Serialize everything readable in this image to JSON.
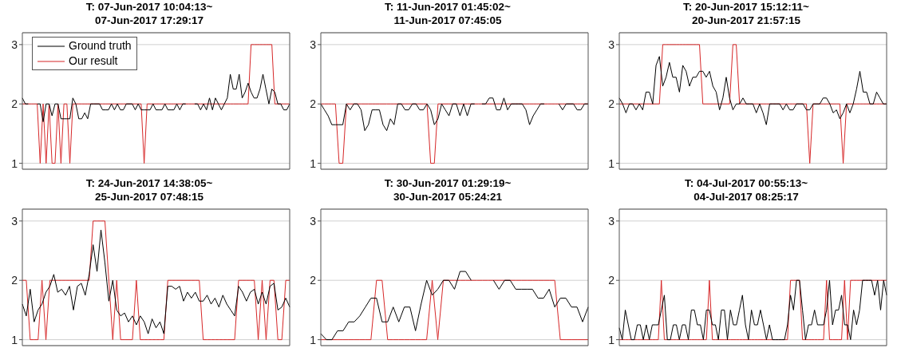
{
  "chart_data": [
    {
      "type": "line",
      "title": "T: 07-Jun-2017 10:04:13~\n07-Jun-2017 17:29:17",
      "legend": "top left",
      "grid": "y",
      "tick_labels": "y",
      "ylim": [
        0.9,
        3.2
      ],
      "yticks": [
        1,
        2,
        3
      ],
      "categories": [
        null,
        null,
        null,
        null,
        null,
        null,
        null,
        null,
        null,
        null,
        null,
        null,
        null,
        null,
        null,
        null,
        null,
        null,
        null,
        null,
        null,
        null,
        null,
        null,
        null,
        null,
        null,
        null,
        null,
        null,
        null,
        null,
        null,
        null,
        null,
        null,
        null,
        null,
        null,
        null,
        null,
        null,
        null,
        null,
        null,
        null,
        null,
        null,
        null,
        null,
        null,
        null,
        null,
        null,
        null,
        null,
        null,
        null,
        null,
        null,
        null,
        null,
        null,
        null,
        null,
        null,
        null,
        null,
        null,
        null,
        null,
        null,
        null,
        null,
        null,
        null,
        null,
        null,
        null,
        null,
        null,
        null,
        null,
        null,
        null,
        null,
        null,
        null,
        null,
        null,
        null
      ],
      "series": [
        {
          "name": "Ground truth",
          "color": "#000000",
          "values": [
            2.1,
            2.0,
            2.0,
            null,
            null,
            2.0,
            2.0,
            1.7,
            2.0,
            2.0,
            1.8,
            2.0,
            2.0,
            1.75,
            1.75,
            1.75,
            1.75,
            2.1,
            2.0,
            1.75,
            1.75,
            1.85,
            1.75,
            2.0,
            2.0,
            2.0,
            2.0,
            1.9,
            1.9,
            1.9,
            2.0,
            1.9,
            2.0,
            1.9,
            1.9,
            2.0,
            2.0,
            2.0,
            1.9,
            2.0,
            1.9,
            1.9,
            1.9,
            1.9,
            2.0,
            1.9,
            1.9,
            1.9,
            2.0,
            1.9,
            1.9,
            1.9,
            2.0,
            1.9,
            2.0,
            2.0,
            null,
            null,
            2.0,
            2.0,
            1.9,
            2.0,
            1.9,
            2.1,
            1.9,
            2.1,
            2.0,
            1.9,
            2.0,
            2.1,
            2.5,
            2.25,
            2.25,
            2.5,
            2.1,
            2.2,
            2.35,
            2.2,
            2.1,
            2.1,
            2.25,
            2.5,
            2.25,
            2.0,
            2.25,
            2.2,
            2.0,
            2.0,
            1.9,
            1.9,
            2.0
          ]
        },
        {
          "name": "Our result",
          "color": "#d62728",
          "values": [
            2,
            2,
            2,
            2,
            2,
            2,
            1,
            2,
            1,
            2,
            1,
            1,
            2,
            1,
            2,
            2,
            1,
            2,
            2,
            2,
            2,
            2,
            2,
            2,
            2,
            2,
            2,
            2,
            2,
            2,
            2,
            2,
            2,
            2,
            2,
            2,
            2,
            2,
            2,
            2,
            2,
            1,
            2,
            2,
            2,
            2,
            2,
            2,
            2,
            2,
            2,
            2,
            2,
            2,
            2,
            2,
            2,
            2,
            2,
            2,
            2,
            2,
            2,
            2,
            2,
            2,
            2,
            2,
            2,
            2,
            2,
            2,
            2,
            2,
            2,
            2,
            2,
            3,
            3,
            3,
            3,
            3,
            3,
            3,
            3,
            2,
            2,
            2,
            2,
            2,
            2
          ]
        }
      ]
    },
    {
      "type": "line",
      "title": "T: 11-Jun-2017 01:45:02~\n11-Jun-2017 07:45:05",
      "grid": "y",
      "tick_labels": "y",
      "ylim": [
        0.9,
        3.2
      ],
      "yticks": [
        1,
        2,
        3
      ],
      "categories": [
        null,
        null,
        null,
        null,
        null,
        null,
        null,
        null,
        null,
        null,
        null,
        null,
        null,
        null,
        null,
        null,
        null,
        null,
        null,
        null,
        null,
        null,
        null,
        null,
        null,
        null,
        null,
        null,
        null,
        null,
        null,
        null,
        null,
        null,
        null,
        null,
        null,
        null,
        null,
        null,
        null,
        null,
        null,
        null,
        null,
        null,
        null,
        null,
        null,
        null,
        null,
        null,
        null,
        null,
        null,
        null,
        null,
        null,
        null,
        null,
        null,
        null,
        null,
        null,
        null,
        null,
        null,
        null,
        null,
        null,
        null,
        null,
        null,
        null
      ],
      "series": [
        {
          "color": "#000000",
          "values": [
            2.0,
            1.9,
            1.8,
            1.65,
            1.65,
            1.65,
            1.65,
            2.0,
            1.9,
            2.0,
            2.0,
            1.9,
            1.55,
            1.65,
            1.9,
            1.9,
            1.9,
            1.65,
            1.55,
            1.75,
            1.65,
            2.0,
            2.0,
            1.9,
            1.9,
            2.0,
            2.0,
            1.9,
            1.9,
            2.0,
            1.9,
            1.65,
            1.75,
            2.0,
            1.9,
            1.8,
            2.0,
            2.0,
            1.8,
            2.0,
            1.8,
            2.0,
            2.0,
            null,
            2.0,
            2.0,
            2.1,
            2.1,
            1.9,
            1.9,
            2.1,
            1.9,
            2.0,
            2.0,
            2.0,
            2.0,
            1.9,
            1.65,
            1.8,
            1.9,
            2.0,
            2.0,
            null,
            null,
            null,
            2.0,
            1.9,
            2.0,
            2.0,
            2.0,
            1.9,
            1.9,
            2.0,
            2.0
          ]
        },
        {
          "color": "#d62728",
          "values": [
            2,
            2,
            2,
            2,
            2,
            1,
            1,
            2,
            2,
            2,
            2,
            2,
            2,
            2,
            2,
            2,
            2,
            2,
            2,
            2,
            2,
            2,
            2,
            2,
            2,
            2,
            2,
            2,
            2,
            2,
            1,
            1,
            2,
            2,
            2,
            2,
            2,
            2,
            2,
            2,
            2,
            2,
            2,
            2,
            2,
            2,
            2,
            2,
            2,
            2,
            2,
            2,
            2,
            2,
            2,
            2,
            2,
            2,
            2,
            2,
            2,
            2,
            2,
            2,
            2,
            2,
            2,
            2,
            2,
            2,
            2,
            2,
            2,
            2
          ]
        }
      ]
    },
    {
      "type": "line",
      "title": "T: 20-Jun-2017 15:12:11~\n20-Jun-2017 21:57:15",
      "grid": "y",
      "tick_labels": "y",
      "ylim": [
        0.9,
        3.2
      ],
      "yticks": [
        1,
        2,
        3
      ],
      "categories": [
        null,
        null,
        null,
        null,
        null,
        null,
        null,
        null,
        null,
        null,
        null,
        null,
        null,
        null,
        null,
        null,
        null,
        null,
        null,
        null,
        null,
        null,
        null,
        null,
        null,
        null,
        null,
        null,
        null,
        null,
        null,
        null,
        null,
        null,
        null,
        null,
        null,
        null,
        null,
        null,
        null,
        null,
        null,
        null,
        null,
        null,
        null,
        null,
        null,
        null,
        null,
        null,
        null,
        null,
        null,
        null,
        null,
        null,
        null,
        null,
        null,
        null,
        null,
        null,
        null,
        null,
        null,
        null,
        null,
        null,
        null,
        null,
        null,
        null,
        null,
        null,
        null,
        null,
        null,
        null,
        null
      ],
      "series": [
        {
          "color": "#000000",
          "values": [
            2.1,
            2.0,
            1.85,
            2.0,
            2.0,
            1.9,
            2.0,
            1.9,
            2.2,
            2.2,
            2.0,
            2.65,
            2.8,
            2.3,
            2.45,
            2.7,
            2.45,
            2.45,
            2.2,
            2.65,
            2.55,
            2.3,
            2.45,
            2.45,
            2.55,
            2.55,
            2.45,
            2.55,
            2.3,
            2.2,
            1.9,
            2.1,
            2.45,
            2.1,
            1.9,
            2.0,
            2.0,
            2.1,
            2.0,
            2.0,
            2.0,
            1.85,
            2.0,
            1.85,
            1.65,
            2.0,
            2.0,
            2.0,
            2.0,
            1.9,
            2.0,
            1.9,
            1.9,
            2.0,
            2.0,
            2.0,
            1.9,
            1.9,
            2.0,
            2.0,
            2.0,
            2.1,
            2.1,
            2.0,
            1.85,
            1.9,
            1.75,
            1.85,
            2.0,
            1.85,
            2.0,
            2.25,
            2.55,
            2.2,
            2.2,
            2.0,
            2.0,
            2.2,
            2.1,
            2.0,
            2.0
          ]
        },
        {
          "color": "#d62728",
          "values": [
            2,
            2,
            2,
            2,
            2,
            2,
            2,
            2,
            2,
            2,
            2,
            2,
            2,
            3,
            3,
            3,
            3,
            3,
            3,
            3,
            3,
            3,
            3,
            3,
            3,
            2,
            2,
            2,
            2,
            2,
            2,
            2,
            2,
            2,
            3,
            3,
            2,
            2,
            2,
            2,
            2,
            2,
            2,
            2,
            2,
            2,
            2,
            2,
            2,
            2,
            2,
            2,
            2,
            2,
            2,
            2,
            2,
            1,
            2,
            2,
            2,
            2,
            2,
            2,
            2,
            2,
            2,
            1,
            2,
            2,
            2,
            2,
            2,
            2,
            2,
            2,
            2,
            2,
            2,
            2,
            2
          ]
        }
      ]
    },
    {
      "type": "line",
      "title": "T: 24-Jun-2017 14:38:05~\n25-Jun-2017 07:48:15",
      "grid": "y",
      "tick_labels": "y",
      "ylim": [
        0.9,
        3.2
      ],
      "yticks": [
        1,
        2,
        3
      ],
      "categories": [
        null,
        null,
        null,
        null,
        null,
        null,
        null,
        null,
        null,
        null,
        null,
        null,
        null,
        null,
        null,
        null,
        null,
        null,
        null,
        null,
        null,
        null,
        null,
        null,
        null,
        null,
        null,
        null,
        null,
        null,
        null,
        null,
        null,
        null,
        null,
        null,
        null,
        null,
        null,
        null,
        null,
        null,
        null,
        null,
        null,
        null,
        null,
        null,
        null,
        null,
        null,
        null,
        null,
        null,
        null,
        null,
        null,
        null,
        null,
        null,
        null,
        null,
        null,
        null,
        null,
        null,
        null,
        null,
        null
      ],
      "series": [
        {
          "color": "#000000",
          "values": [
            1.6,
            1.4,
            1.85,
            1.3,
            1.5,
            1.6,
            1.8,
            1.9,
            2.1,
            1.8,
            1.85,
            1.75,
            1.9,
            1.5,
            1.9,
            1.95,
            1.75,
            2.1,
            2.6,
            2.15,
            2.85,
            2.3,
            1.65,
            2.0,
            1.5,
            1.4,
            1.45,
            1.3,
            1.4,
            1.25,
            1.4,
            1.3,
            1.1,
            1.35,
            1.2,
            1.3,
            1.1,
            1.9,
            1.9,
            1.85,
            1.9,
            1.65,
            1.8,
            1.7,
            1.8,
            1.65,
            1.65,
            1.75,
            1.6,
            1.7,
            1.55,
            1.75,
            1.6,
            1.5,
            1.4,
            1.9,
            1.8,
            1.65,
            1.8,
            1.85,
            1.6,
            1.8,
            1.6,
            1.9,
            1.95,
            1.5,
            1.55,
            1.7,
            1.55
          ]
        },
        {
          "color": "#d62728",
          "values": [
            2,
            2,
            1,
            1,
            1,
            2,
            1,
            2,
            2,
            2,
            2,
            2,
            2,
            2,
            2,
            2,
            2,
            2,
            3,
            3,
            3,
            3,
            2,
            1,
            2,
            1,
            1,
            1,
            1,
            2,
            1,
            1,
            1,
            1,
            1,
            1,
            1,
            2,
            2,
            2,
            2,
            2,
            2,
            2,
            2,
            2,
            1,
            1,
            1,
            1,
            1,
            1,
            1,
            1,
            1,
            2,
            2,
            2,
            2,
            2,
            1,
            2,
            1,
            2,
            2,
            1,
            1,
            2,
            2
          ]
        }
      ]
    },
    {
      "type": "line",
      "title": "T: 30-Jun-2017 01:29:19~\n30-Jun-2017 05:24:21",
      "grid": "y",
      "tick_labels": "y",
      "ylim": [
        0.9,
        3.2
      ],
      "yticks": [
        1,
        2,
        3
      ],
      "categories": [
        null,
        null,
        null,
        null,
        null,
        null,
        null,
        null,
        null,
        null,
        null,
        null,
        null,
        null,
        null,
        null,
        null,
        null,
        null,
        null,
        null,
        null,
        null,
        null,
        null,
        null,
        null,
        null,
        null,
        null,
        null,
        null,
        null,
        null,
        null,
        null,
        null,
        null,
        null,
        null,
        null,
        null,
        null,
        null,
        null,
        null,
        null,
        null,
        null
      ],
      "series": [
        {
          "color": "#000000",
          "values": [
            1.1,
            1.0,
            1.0,
            1.15,
            1.15,
            1.3,
            1.3,
            1.4,
            1.55,
            1.7,
            1.7,
            1.3,
            1.3,
            1.55,
            1.3,
            1.55,
            1.55,
            1.15,
            1.6,
            2.0,
            1.75,
            1.85,
            2.0,
            2.0,
            1.85,
            2.15,
            2.15,
            2.0,
            null,
            null,
            null,
            2.0,
            1.85,
            2.0,
            2.0,
            1.85,
            1.85,
            1.85,
            1.85,
            1.7,
            1.7,
            1.85,
            1.55,
            1.7,
            1.7,
            1.55,
            1.55,
            1.3,
            1.55
          ]
        },
        {
          "color": "#d62728",
          "values": [
            1,
            1,
            1,
            1,
            1,
            1,
            1,
            1,
            1,
            1,
            2,
            2,
            1,
            1,
            1,
            1,
            1,
            1,
            1,
            1,
            2,
            1,
            2,
            2,
            2,
            2,
            2,
            2,
            2,
            2,
            2,
            2,
            2,
            2,
            2,
            2,
            2,
            2,
            2,
            2,
            2,
            2,
            2,
            1,
            1,
            1,
            1,
            1,
            1
          ]
        }
      ]
    },
    {
      "type": "line",
      "title": "T: 04-Jul-2017 00:55:13~\n04-Jul-2017 08:25:17",
      "grid": "y",
      "tick_labels": "y",
      "ylim": [
        0.9,
        3.2
      ],
      "yticks": [
        1,
        2,
        3
      ],
      "categories": [
        null,
        null,
        null,
        null,
        null,
        null,
        null,
        null,
        null,
        null,
        null,
        null,
        null,
        null,
        null,
        null,
        null,
        null,
        null,
        null,
        null,
        null,
        null,
        null,
        null,
        null,
        null,
        null,
        null,
        null,
        null,
        null,
        null,
        null,
        null,
        null,
        null,
        null,
        null,
        null,
        null,
        null,
        null,
        null,
        null,
        null,
        null,
        null,
        null,
        null,
        null,
        null,
        null,
        null,
        null,
        null,
        null,
        null,
        null,
        null,
        null,
        null,
        null,
        null,
        null,
        null,
        null,
        null,
        null,
        null,
        null,
        null,
        null,
        null,
        null,
        null,
        null,
        null,
        null,
        null,
        null,
        null,
        null,
        null,
        null,
        null,
        null,
        null,
        null,
        null
      ],
      "series": [
        {
          "color": "#000000",
          "values": [
            1.2,
            1.0,
            1.5,
            1.25,
            1.0,
            1.0,
            1.25,
            1.25,
            1.0,
            1.25,
            1.0,
            1.25,
            1.25,
            1.25,
            1.5,
            1.75,
            1.0,
            1.0,
            1.25,
            1.25,
            1.0,
            1.25,
            1.25,
            1.0,
            1.5,
            1.5,
            1.25,
            1.25,
            1.0,
            1.5,
            1.5,
            1.25,
            1.25,
            1.0,
            1.5,
            1.5,
            1.0,
            1.5,
            1.25,
            1.25,
            1.5,
            1.75,
            1.25,
            1.0,
            1.5,
            1.25,
            1.25,
            1.5,
            1.25,
            1.0,
            1.25,
            1.0,
            1.0,
            1.0,
            1.0,
            1.0,
            1.25,
            1.75,
            1.5,
            2.0,
            2.0,
            1.5,
            1.0,
            1.25,
            1.25,
            1.5,
            1.25,
            1.25,
            1.25,
            1.5,
            2.0,
            1.25,
            1.5,
            1.5,
            1.75,
            1.25,
            1.25,
            1.0,
            1.5,
            1.25,
            1.5,
            2.0,
            2.0,
            2.0,
            2.0,
            1.75,
            2.0,
            1.5,
            2.0,
            1.75
          ]
        },
        {
          "color": "#d62728",
          "values": [
            1,
            1,
            1,
            1,
            1,
            1,
            1,
            1,
            1,
            1,
            1,
            1,
            1,
            1,
            2,
            1,
            1,
            1,
            1,
            1,
            1,
            1,
            1,
            1,
            1,
            1,
            1,
            1,
            1,
            1,
            2,
            1,
            1,
            1,
            1,
            1,
            1,
            1,
            1,
            1,
            1,
            1,
            1,
            1,
            1,
            1,
            1,
            1,
            1,
            1,
            1,
            1,
            1,
            1,
            1,
            1,
            1,
            2,
            2,
            2,
            2,
            1,
            1,
            1,
            1,
            1,
            1,
            1,
            1,
            2,
            1,
            1,
            1,
            1,
            1,
            2,
            1,
            2,
            2,
            2,
            2,
            2,
            2,
            2,
            2,
            2,
            2,
            2,
            2,
            2
          ]
        }
      ]
    }
  ]
}
